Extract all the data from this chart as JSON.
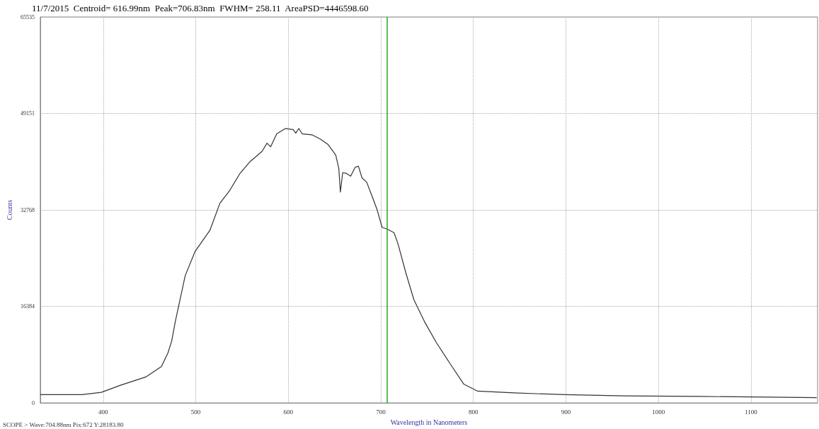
{
  "chart_data": {
    "type": "line",
    "title": "11/7/2015  Centroid= 616.99nm  Peak=706.83nm  FWHM= 258.11  AreaPSD=4446598.60",
    "xlabel": "Wavelength in Nanometers",
    "ylabel": "Counts",
    "x": [
      332,
      377,
      398,
      418.6,
      446,
      463,
      470,
      474,
      477.9,
      488.6,
      499.2,
      515.3,
      526.1,
      536.8,
      547.5,
      558.2,
      571.6,
      577,
      581,
      587.6,
      597,
      605.3,
      608.1,
      611.4,
      615,
      626.1,
      634.5,
      642.9,
      651.3,
      654.6,
      656.3,
      658.8,
      662.4,
      667.4,
      672.2,
      675.8,
      679.7,
      684.7,
      690.3,
      695.8,
      701.4,
      707.1,
      714.3,
      718.6,
      727.2,
      735.8,
      747.2,
      759.8,
      774.7,
      789.6,
      804.7,
      844,
      899,
      963,
      1044,
      1171
    ],
    "series": [
      {
        "color": "#333333",
        "values": [
          1400,
          1400,
          1800,
          3000,
          4400,
          6200,
          8500,
          10500,
          13800,
          21600,
          25700,
          29300,
          33900,
          36100,
          38900,
          40900,
          42700,
          44100,
          43500,
          45700,
          46600,
          46400,
          45800,
          46600,
          45700,
          45500,
          44800,
          43900,
          42100,
          39800,
          35800,
          39100,
          39000,
          38500,
          40000,
          40200,
          38200,
          37500,
          35200,
          32900,
          29800,
          29500,
          28900,
          27000,
          22000,
          17500,
          13800,
          10300,
          6700,
          3200,
          2000,
          1700,
          1400,
          1200,
          1100,
          900
        ]
      }
    ],
    "xlim": [
      332,
      1172
    ],
    "xticks": [
      400,
      500,
      600,
      700,
      800,
      900,
      1000,
      1100
    ],
    "ylim": [
      0,
      65535
    ],
    "yticks": [
      0,
      16384,
      32768,
      49151,
      65535
    ],
    "grid": true,
    "marker": "none",
    "line_style": "solid",
    "ref_lines": [
      {
        "axis": "x",
        "value": 706.83,
        "color": "#22aa22"
      }
    ],
    "annotations": [
      "SCOPE > Wave:704.88nm Pix:672 Y:28183.80"
    ]
  }
}
